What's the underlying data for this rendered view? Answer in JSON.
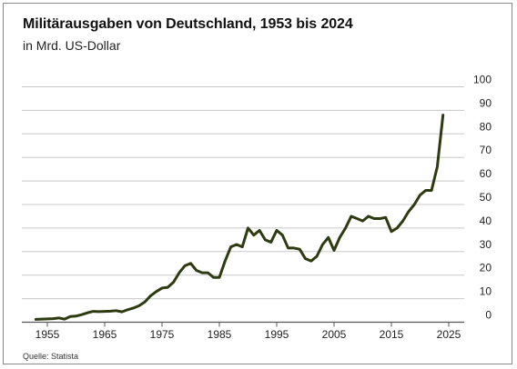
{
  "title": "Militärausgaben von Deutschland, 1953 bis 2024",
  "subtitle": "in Mrd. US-Dollar",
  "source": "Quelle: Statista",
  "colors": {
    "line": "#2e3a10",
    "grid": "#c8c8c8",
    "axis": "#555555"
  },
  "chart_data": {
    "type": "line",
    "title": "Militärausgaben von Deutschland, 1953 bis 2024",
    "subtitle": "in Mrd. US-Dollar",
    "xlabel": "",
    "ylabel": "",
    "xlim": [
      1953,
      2024
    ],
    "ylim": [
      0,
      100
    ],
    "grid": true,
    "y_axis_position": "right",
    "x_ticks": [
      1955,
      1965,
      1975,
      1985,
      1995,
      2005,
      2015,
      2025
    ],
    "x_tick_labels": [
      "1955",
      "1965",
      "1975",
      "1985",
      "1995",
      "2005",
      "2015",
      "2025"
    ],
    "y_ticks": [
      0,
      10,
      20,
      30,
      40,
      50,
      60,
      70,
      80,
      90,
      100
    ],
    "y_tick_labels": [
      "0",
      "10",
      "20",
      "30",
      "40",
      "50",
      "60",
      "70",
      "80",
      "90",
      "100"
    ],
    "series": [
      {
        "color": "#2e3a10",
        "x": [
          1953,
          1954,
          1955,
          1956,
          1957,
          1958,
          1959,
          1960,
          1961,
          1962,
          1963,
          1964,
          1965,
          1966,
          1967,
          1968,
          1969,
          1970,
          1971,
          1972,
          1973,
          1974,
          1975,
          1976,
          1977,
          1978,
          1979,
          1980,
          1981,
          1982,
          1983,
          1984,
          1985,
          1986,
          1987,
          1988,
          1989,
          1990,
          1991,
          1992,
          1993,
          1994,
          1995,
          1996,
          1997,
          1998,
          1999,
          2000,
          2001,
          2002,
          2003,
          2004,
          2005,
          2006,
          2007,
          2008,
          2009,
          2010,
          2011,
          2012,
          2013,
          2014,
          2015,
          2016,
          2017,
          2018,
          2019,
          2020,
          2021,
          2022,
          2023,
          2024
        ],
        "values": [
          1.2,
          1.3,
          1.4,
          1.5,
          1.8,
          1.3,
          2.4,
          2.6,
          3.2,
          4.0,
          4.6,
          4.5,
          4.6,
          4.7,
          4.9,
          4.4,
          5.3,
          6.0,
          7.0,
          8.6,
          11.2,
          13.0,
          14.5,
          14.8,
          17.0,
          21.0,
          24.0,
          25.0,
          22.0,
          21.0,
          21.0,
          19.0,
          19.0,
          26.0,
          32.0,
          33.0,
          32.0,
          40.0,
          37.0,
          39.0,
          35.0,
          34.0,
          39.0,
          37.0,
          31.5,
          31.5,
          31.0,
          27.0,
          26.0,
          28.0,
          33.0,
          36.0,
          30.5,
          36.0,
          40.0,
          45.0,
          44.0,
          43.0,
          45.0,
          44.0,
          44.0,
          44.5,
          38.5,
          40.0,
          43.0,
          47.0,
          50.0,
          54.0,
          56.0,
          56.0,
          66.0,
          88.0
        ]
      }
    ]
  }
}
